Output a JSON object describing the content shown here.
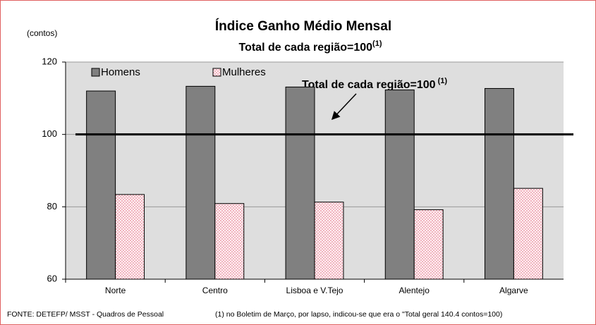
{
  "chart_data": {
    "type": "bar",
    "title": "Índice Ganho Médio Mensal",
    "subtitle": "Total de cada região=100",
    "subtitle_note": "(1)",
    "y_label": "(contos)",
    "annotation": "Total de cada região=100",
    "annotation_note": " (1)",
    "reference_line": 100,
    "categories": [
      "Norte",
      "Centro",
      "Lisboa e V.Tejo",
      "Alentejo",
      "Algarve"
    ],
    "series": [
      {
        "name": "Homens",
        "color": "#808080",
        "values": [
          112,
          113.3,
          113.1,
          112.3,
          112.7
        ]
      },
      {
        "name": "Mulheres",
        "color": "#ffd9e0",
        "values": [
          83.4,
          80.9,
          81.3,
          79.2,
          85.1
        ]
      }
    ],
    "ylim": [
      60,
      120
    ],
    "yticks": [
      60,
      80,
      100,
      120
    ],
    "grid": true,
    "footer_source": "FONTE: DETEFP/ MSST - Quadros de Pessoal",
    "footer_note": "(1) no Boletim de Março, por lapso, indicou-se que era o \"Total geral 140.4 contos=100)"
  }
}
